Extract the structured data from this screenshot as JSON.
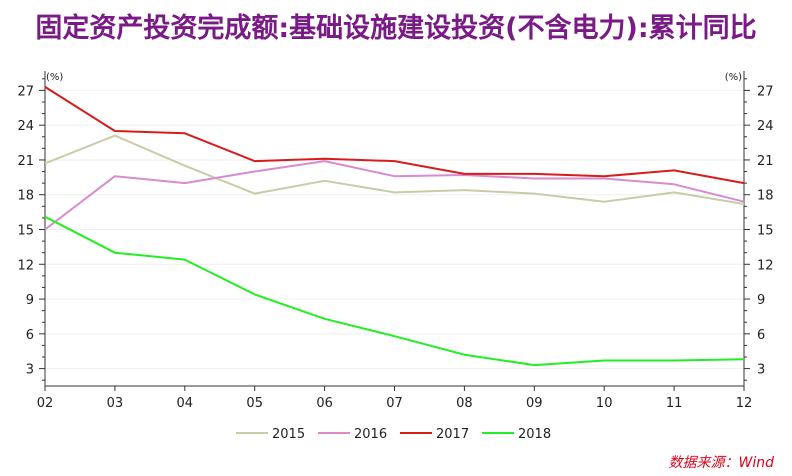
{
  "title": "固定资产投资完成额:基础设施建设投资(不含电力):累计同比",
  "source": "数据来源：Wind",
  "chart_data": {
    "type": "line",
    "categories": [
      "02",
      "03",
      "04",
      "05",
      "06",
      "07",
      "08",
      "09",
      "10",
      "11",
      "12"
    ],
    "y_unit_left": "(%)",
    "y_unit_right": "(%)",
    "ylim": [
      1.5,
      28.5
    ],
    "yticks": [
      3,
      6,
      9,
      12,
      15,
      18,
      21,
      24,
      27
    ],
    "grid": true,
    "legend_position": "bottom",
    "series": [
      {
        "name": "2015",
        "color": "#c8cca8",
        "values": [
          20.7,
          23.1,
          20.5,
          18.1,
          19.2,
          18.2,
          18.4,
          18.1,
          17.4,
          18.2,
          17.2
        ]
      },
      {
        "name": "2016",
        "color": "#d98ad0",
        "values": [
          15.0,
          19.6,
          19.0,
          20.0,
          20.9,
          19.6,
          19.7,
          19.4,
          19.4,
          18.9,
          17.4
        ]
      },
      {
        "name": "2017",
        "color": "#d81c1c",
        "values": [
          27.3,
          23.5,
          23.3,
          20.9,
          21.1,
          20.9,
          19.8,
          19.8,
          19.6,
          20.1,
          19.0
        ]
      },
      {
        "name": "2018",
        "color": "#22ee22",
        "values": [
          16.1,
          13.0,
          12.4,
          9.4,
          7.3,
          5.8,
          4.2,
          3.3,
          3.7,
          3.7,
          3.8
        ]
      }
    ]
  }
}
